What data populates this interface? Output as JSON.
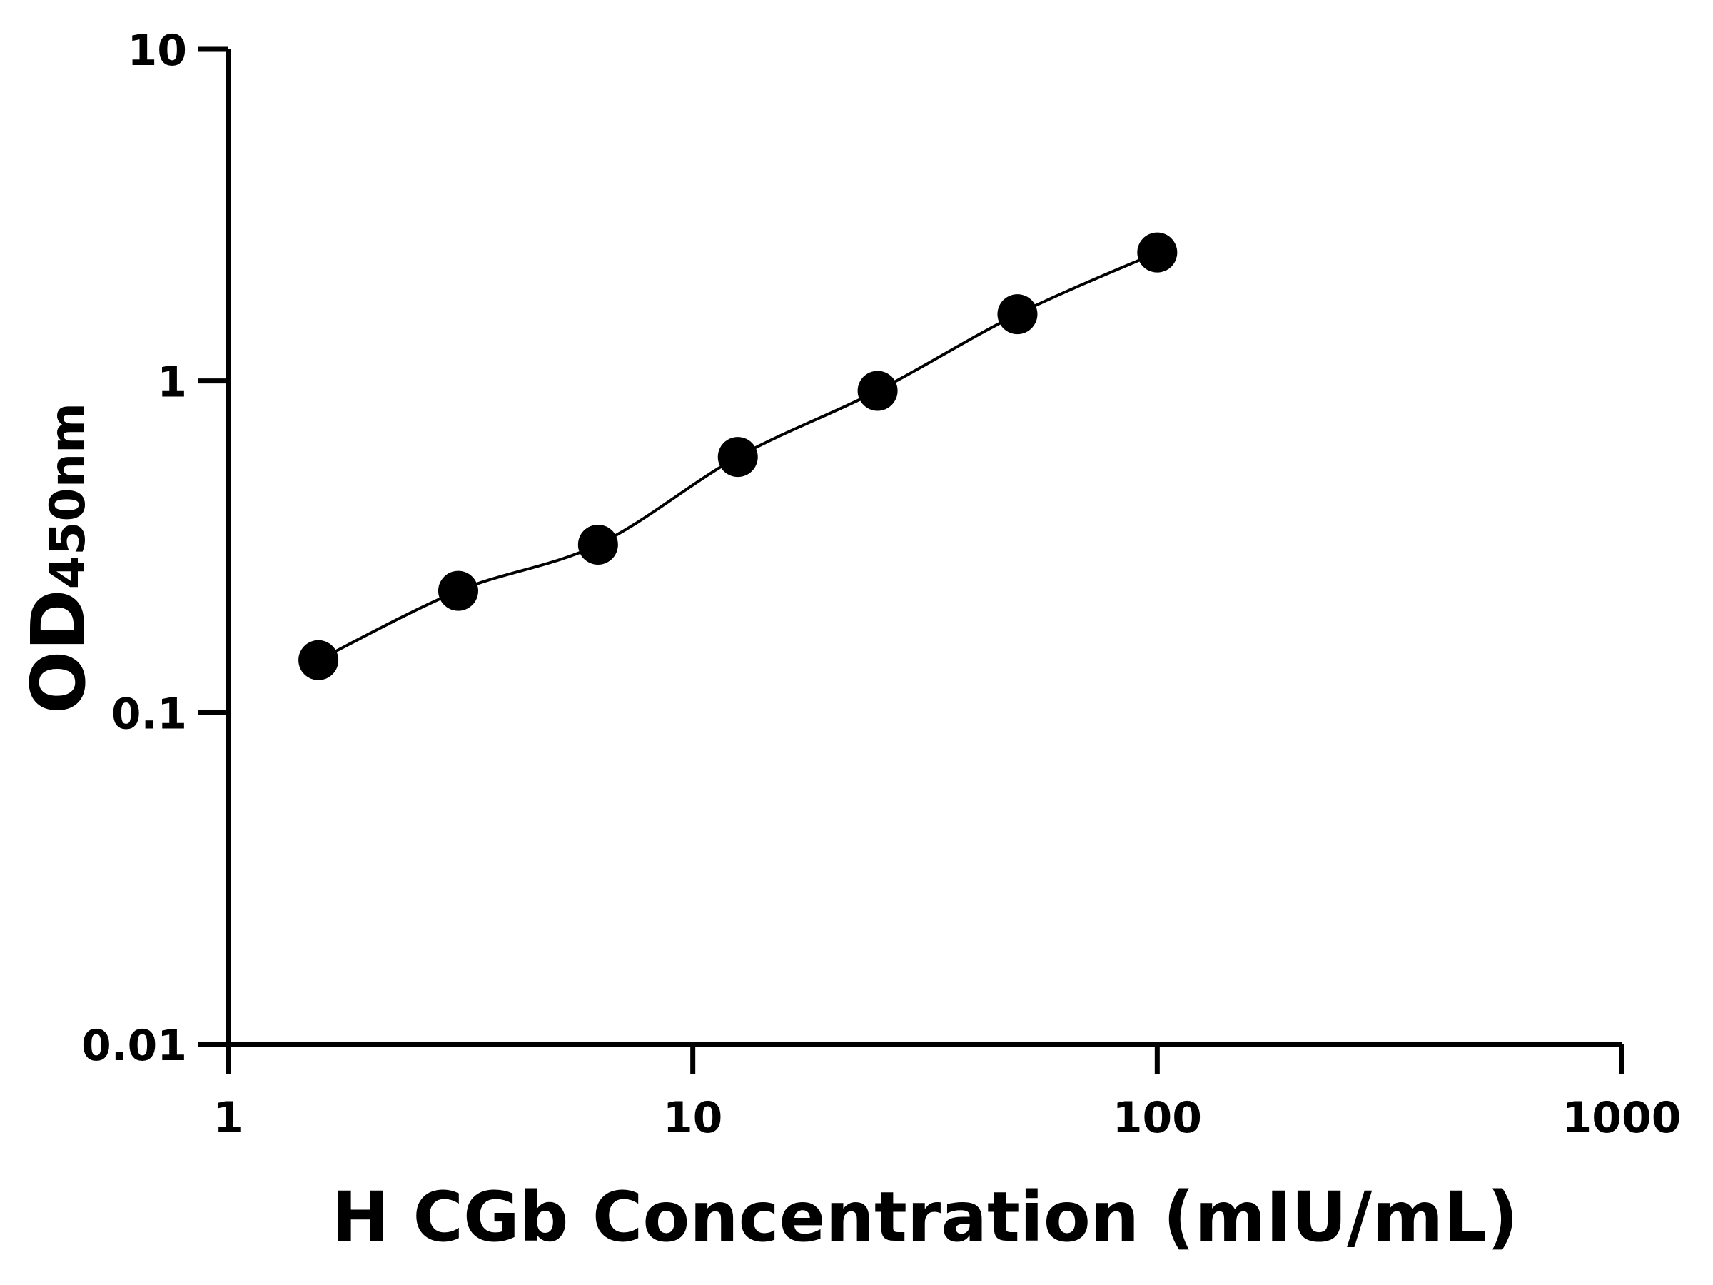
{
  "chart_data": {
    "type": "scatter",
    "xlabel": "H CGb Concentration (mIU/mL)",
    "ylabel_main": "OD",
    "ylabel_sub": "450nm",
    "xscale": "log",
    "yscale": "log",
    "xlim": [
      1,
      1000
    ],
    "ylim": [
      0.01,
      10
    ],
    "xticks": [
      "1",
      "10",
      "100",
      "1000"
    ],
    "yticks": [
      "0.01",
      "0.1",
      "1",
      "10"
    ],
    "grid": false,
    "fit_line": true,
    "marker_color": "#000000",
    "line_color": "#000000",
    "x": [
      1.5625,
      3.125,
      6.25,
      12.5,
      25,
      50,
      100
    ],
    "y": [
      0.144,
      0.233,
      0.321,
      0.59,
      0.934,
      1.59,
      2.44
    ]
  }
}
